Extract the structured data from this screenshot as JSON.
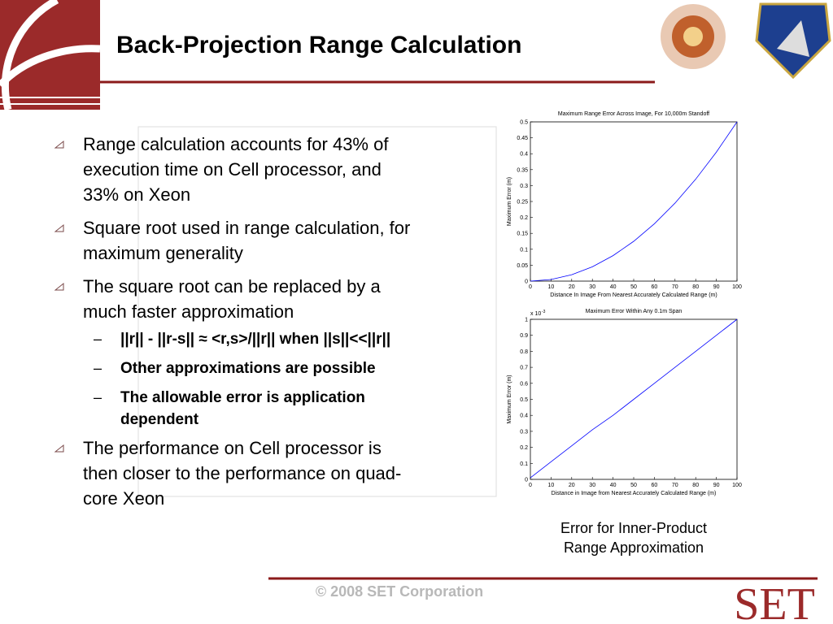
{
  "slide": {
    "title": "Back-Projection Range Calculation",
    "bullets": [
      {
        "lines": [
          "Range calculation accounts for 43% of",
          "execution time on Cell processor, and",
          "33% on Xeon"
        ]
      },
      {
        "lines": [
          "Square root used in range calculation, for",
          "maximum generality"
        ]
      },
      {
        "lines": [
          "The square root can be replaced by a",
          "much faster approximation"
        ],
        "sub": [
          {
            "lines": [
              "||r|| - ||r-s|| ≈ <r,s>/||r|| when ||s||<<||r||"
            ]
          },
          {
            "lines": [
              "Other approximations are possible"
            ]
          },
          {
            "lines": [
              "The allowable error is application",
              "dependent"
            ]
          }
        ]
      },
      {
        "lines": [
          "The performance on Cell processor is",
          "then closer to the performance on quad-",
          "core Xeon"
        ]
      }
    ],
    "caption": [
      "Error for Inner-Product",
      "Range Approximation"
    ],
    "footer": "© 2008 SET Corporation",
    "logo": "SET"
  },
  "chart_data": [
    {
      "type": "line",
      "title": "Maximum Range Error Across Image, For 10,000m Standoff",
      "xlabel": "Distance In Image From Nearest Accurately Calculated Range (m)",
      "ylabel": "Maximum Error (m)",
      "x": [
        0,
        10,
        20,
        30,
        40,
        50,
        60,
        70,
        80,
        90,
        100
      ],
      "series": [
        {
          "name": "error",
          "color": "#0000ff",
          "values": [
            0,
            0.005,
            0.02,
            0.045,
            0.08,
            0.125,
            0.18,
            0.245,
            0.32,
            0.405,
            0.5
          ]
        }
      ],
      "xlim": [
        0,
        100
      ],
      "xticks": [
        0,
        10,
        20,
        30,
        40,
        50,
        60,
        70,
        80,
        90,
        100
      ],
      "ylim": [
        0,
        0.5
      ],
      "yticks": [
        0,
        0.05,
        0.1,
        0.15,
        0.2,
        0.25,
        0.3,
        0.35,
        0.4,
        0.45,
        0.5
      ]
    },
    {
      "type": "line",
      "title": "Maximum Error Within Any 0.1m Span",
      "xlabel": "Distance in Image from Nearest Accurately Calculated Range (m)",
      "ylabel": "Maximum Error (m)",
      "y_multiplier": {
        "base": "x 10",
        "exponent": "-3"
      },
      "x": [
        0,
        10,
        20,
        30,
        40,
        50,
        60,
        70,
        80,
        90,
        100
      ],
      "series": [
        {
          "name": "error",
          "color": "#0000ff",
          "values": [
            0.01,
            0.11,
            0.21,
            0.31,
            0.4,
            0.5,
            0.6,
            0.7,
            0.8,
            0.9,
            1
          ]
        }
      ],
      "xlim": [
        0,
        100
      ],
      "xticks": [
        0,
        10,
        20,
        30,
        40,
        50,
        60,
        70,
        80,
        90,
        100
      ],
      "ylim": [
        0,
        1
      ],
      "yticks": [
        0,
        0.1,
        0.2,
        0.3,
        0.4,
        0.5,
        0.6,
        0.7,
        0.8,
        0.9,
        1
      ]
    }
  ]
}
